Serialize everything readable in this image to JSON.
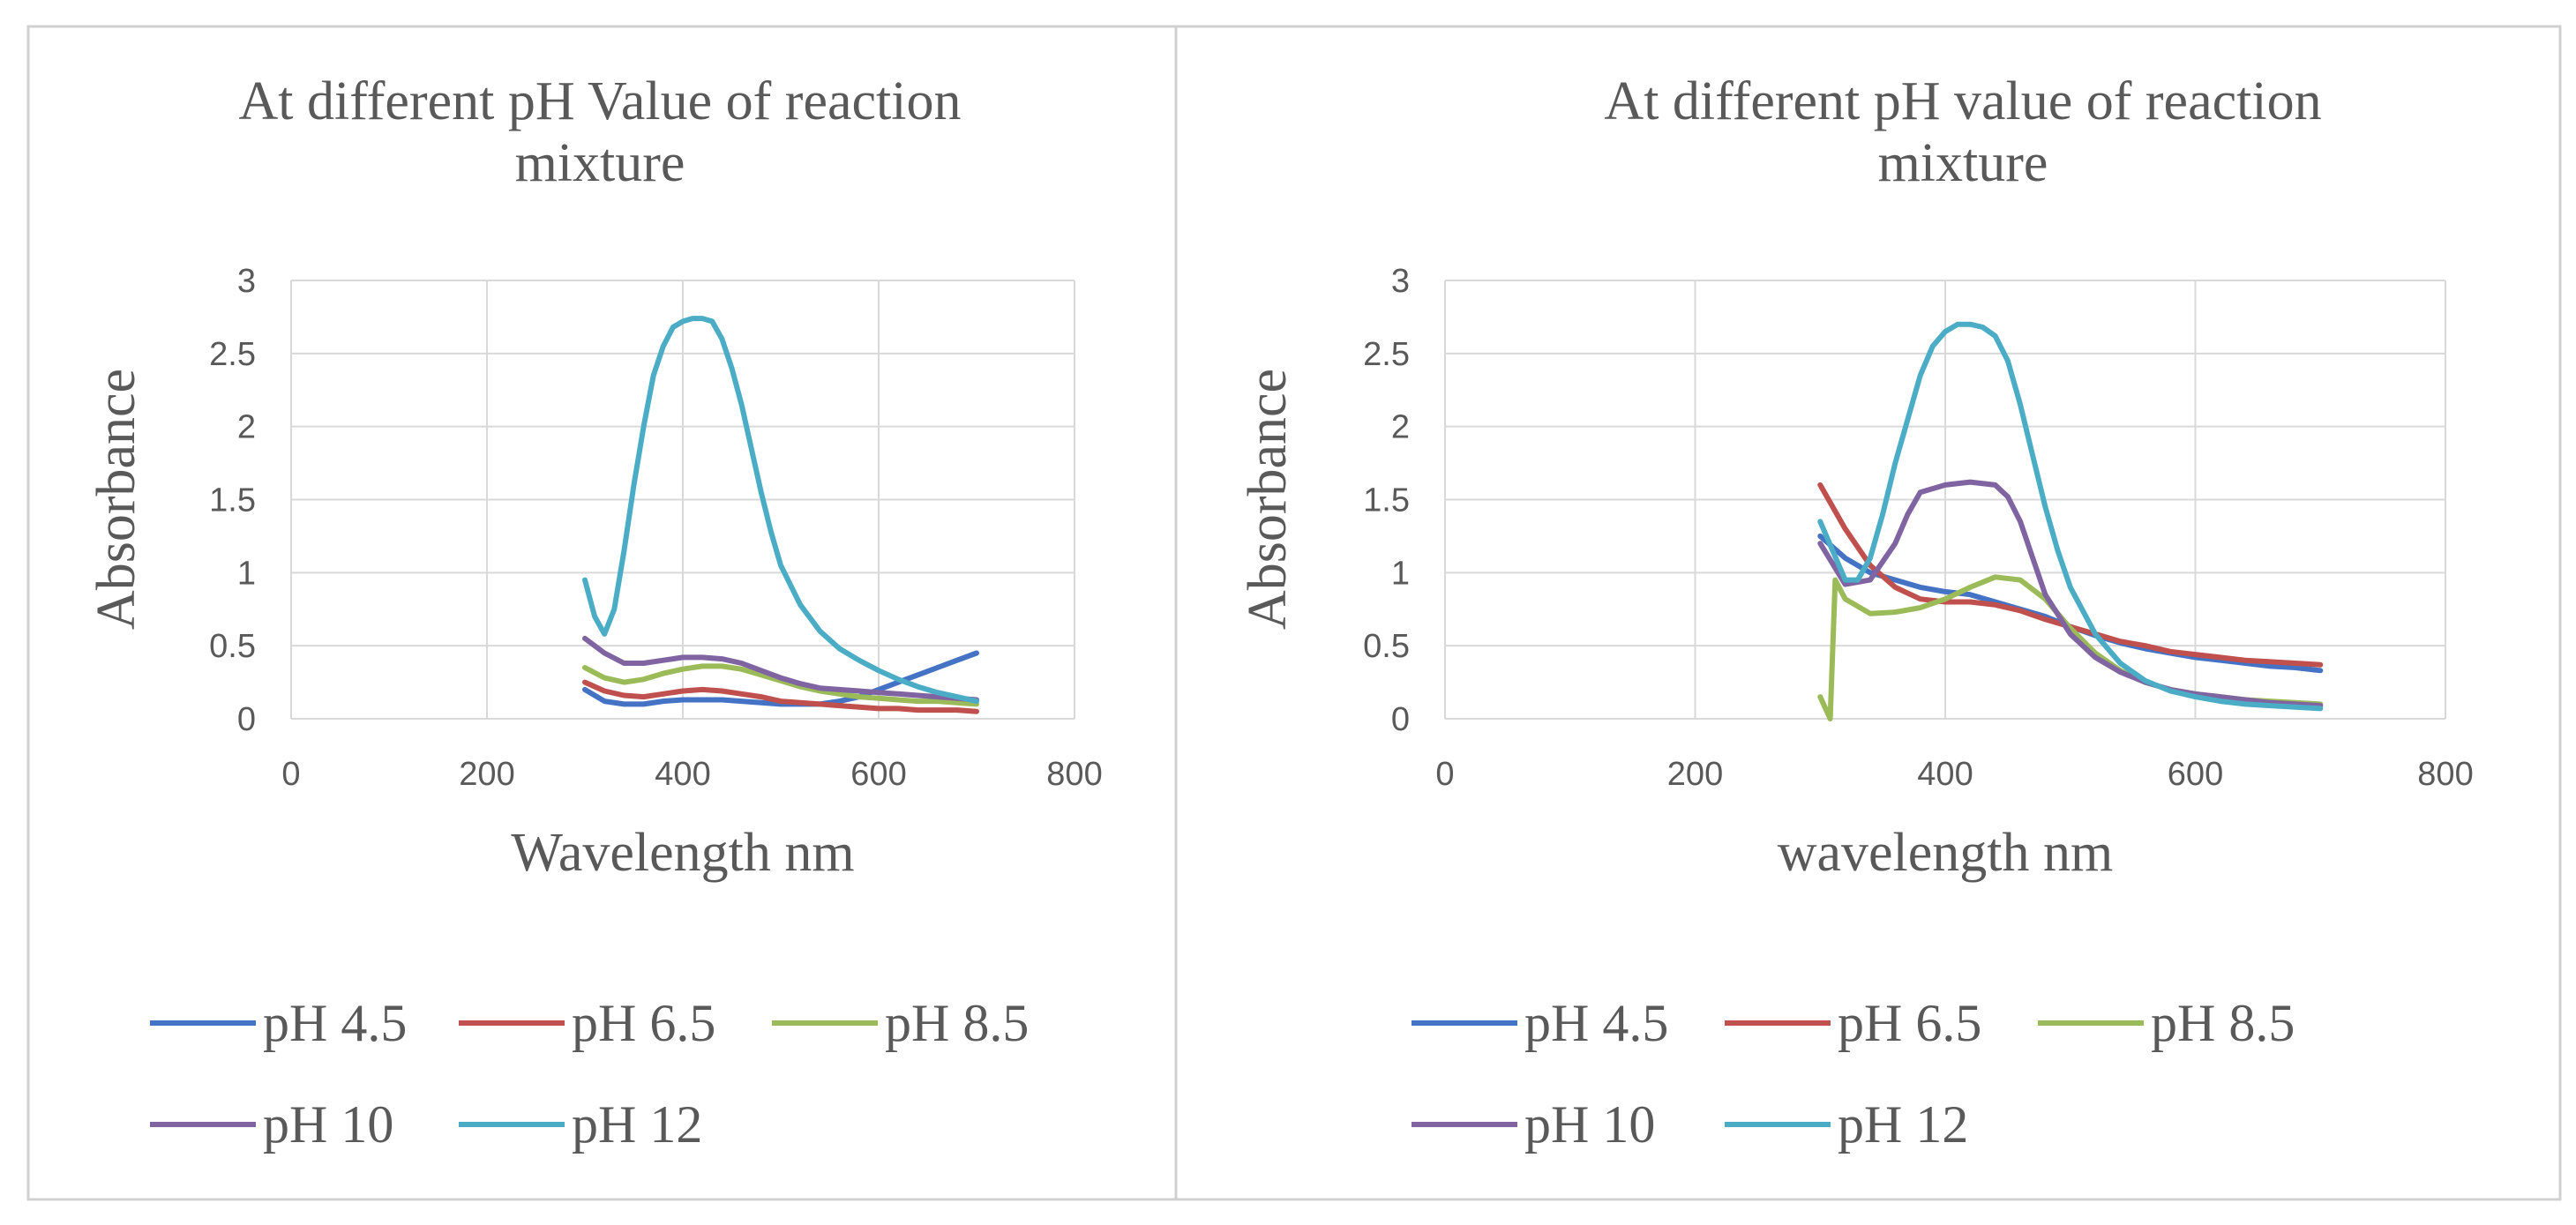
{
  "chart_data": [
    {
      "type": "line",
      "title_lines": [
        "At different pH Value of reaction",
        "mixture"
      ],
      "xlabel": "Wavelength nm",
      "ylabel": "Absorbance",
      "xlim": [
        0,
        800
      ],
      "ylim": [
        0,
        3
      ],
      "xticks": [
        "0",
        "200",
        "400",
        "600",
        "800"
      ],
      "yticks": [
        "0",
        "0.5",
        "1",
        "1.5",
        "2",
        "2.5",
        "3"
      ],
      "grid": true,
      "legend_position": "bottom",
      "series": [
        {
          "name": "pH 4.5",
          "color": "#4472c4",
          "x": [
            300,
            320,
            340,
            360,
            380,
            400,
            420,
            440,
            460,
            480,
            500,
            520,
            540,
            560,
            580,
            600,
            620,
            640,
            660,
            680,
            700
          ],
          "y": [
            0.2,
            0.12,
            0.1,
            0.1,
            0.12,
            0.13,
            0.13,
            0.13,
            0.12,
            0.11,
            0.1,
            0.1,
            0.1,
            0.12,
            0.15,
            0.2,
            0.25,
            0.3,
            0.35,
            0.4,
            0.45
          ]
        },
        {
          "name": "pH 6.5",
          "color": "#c0504d",
          "x": [
            300,
            320,
            340,
            360,
            380,
            400,
            420,
            440,
            460,
            480,
            500,
            520,
            540,
            560,
            580,
            600,
            620,
            640,
            660,
            680,
            700
          ],
          "y": [
            0.25,
            0.19,
            0.16,
            0.15,
            0.17,
            0.19,
            0.2,
            0.19,
            0.17,
            0.15,
            0.12,
            0.11,
            0.1,
            0.09,
            0.08,
            0.07,
            0.07,
            0.06,
            0.06,
            0.06,
            0.05
          ]
        },
        {
          "name": "pH 8.5",
          "color": "#9bbb59",
          "x": [
            300,
            320,
            340,
            360,
            380,
            400,
            420,
            440,
            460,
            480,
            500,
            520,
            540,
            560,
            580,
            600,
            620,
            640,
            660,
            680,
            700
          ],
          "y": [
            0.35,
            0.28,
            0.25,
            0.27,
            0.31,
            0.34,
            0.36,
            0.36,
            0.34,
            0.3,
            0.26,
            0.22,
            0.19,
            0.17,
            0.15,
            0.14,
            0.13,
            0.12,
            0.12,
            0.11,
            0.1
          ]
        },
        {
          "name": "pH 10",
          "color": "#8064a2",
          "x": [
            300,
            320,
            340,
            360,
            380,
            400,
            420,
            440,
            460,
            480,
            500,
            520,
            540,
            560,
            580,
            600,
            620,
            640,
            660,
            680,
            700
          ],
          "y": [
            0.55,
            0.45,
            0.38,
            0.38,
            0.4,
            0.42,
            0.42,
            0.41,
            0.38,
            0.33,
            0.28,
            0.24,
            0.21,
            0.2,
            0.19,
            0.18,
            0.17,
            0.16,
            0.15,
            0.14,
            0.13
          ]
        },
        {
          "name": "pH 12",
          "color": "#4bacc6",
          "x": [
            300,
            310,
            320,
            330,
            340,
            350,
            360,
            370,
            380,
            390,
            400,
            410,
            420,
            430,
            440,
            450,
            460,
            470,
            480,
            490,
            500,
            520,
            540,
            560,
            580,
            600,
            620,
            640,
            660,
            680,
            700
          ],
          "y": [
            0.95,
            0.7,
            0.58,
            0.75,
            1.15,
            1.6,
            2.0,
            2.35,
            2.55,
            2.68,
            2.72,
            2.74,
            2.74,
            2.72,
            2.6,
            2.4,
            2.15,
            1.85,
            1.55,
            1.28,
            1.05,
            0.78,
            0.6,
            0.48,
            0.4,
            0.33,
            0.27,
            0.22,
            0.18,
            0.15,
            0.12
          ]
        }
      ]
    },
    {
      "type": "line",
      "title_lines": [
        "At different pH value of reaction",
        "mixture"
      ],
      "xlabel": "wavelength nm",
      "ylabel": "Absorbance",
      "xlim": [
        0,
        800
      ],
      "ylim": [
        0,
        3
      ],
      "xticks": [
        "0",
        "200",
        "400",
        "600",
        "800"
      ],
      "yticks": [
        "0",
        "0.5",
        "1",
        "1.5",
        "2",
        "2.5",
        "3"
      ],
      "grid": true,
      "legend_position": "bottom",
      "series": [
        {
          "name": "pH 4.5",
          "color": "#4472c4",
          "x": [
            300,
            320,
            340,
            360,
            380,
            400,
            420,
            440,
            460,
            480,
            500,
            520,
            540,
            560,
            580,
            600,
            620,
            640,
            660,
            680,
            700
          ],
          "y": [
            1.25,
            1.1,
            1.0,
            0.95,
            0.9,
            0.87,
            0.85,
            0.8,
            0.75,
            0.7,
            0.63,
            0.57,
            0.52,
            0.48,
            0.45,
            0.42,
            0.4,
            0.38,
            0.36,
            0.35,
            0.33
          ]
        },
        {
          "name": "pH 6.5",
          "color": "#c0504d",
          "x": [
            300,
            320,
            340,
            360,
            380,
            400,
            420,
            440,
            460,
            480,
            500,
            520,
            540,
            560,
            580,
            600,
            620,
            640,
            660,
            680,
            700
          ],
          "y": [
            1.6,
            1.3,
            1.05,
            0.9,
            0.82,
            0.8,
            0.8,
            0.78,
            0.74,
            0.68,
            0.63,
            0.58,
            0.53,
            0.5,
            0.46,
            0.44,
            0.42,
            0.4,
            0.39,
            0.38,
            0.37
          ]
        },
        {
          "name": "pH 8.5",
          "color": "#9bbb59",
          "x": [
            300,
            308,
            312,
            320,
            340,
            360,
            380,
            400,
            420,
            440,
            460,
            480,
            500,
            520,
            540,
            560,
            580,
            600,
            620,
            640,
            660,
            680,
            700
          ],
          "y": [
            0.15,
            0.0,
            0.95,
            0.82,
            0.72,
            0.73,
            0.76,
            0.82,
            0.9,
            0.97,
            0.95,
            0.82,
            0.62,
            0.45,
            0.33,
            0.25,
            0.2,
            0.17,
            0.15,
            0.13,
            0.12,
            0.11,
            0.1
          ]
        },
        {
          "name": "pH 10",
          "color": "#8064a2",
          "x": [
            300,
            320,
            340,
            360,
            370,
            380,
            400,
            420,
            440,
            450,
            460,
            470,
            480,
            500,
            520,
            540,
            560,
            580,
            600,
            620,
            640,
            660,
            680,
            700
          ],
          "y": [
            1.2,
            0.92,
            0.95,
            1.2,
            1.4,
            1.55,
            1.6,
            1.62,
            1.6,
            1.52,
            1.35,
            1.1,
            0.85,
            0.58,
            0.42,
            0.32,
            0.25,
            0.2,
            0.17,
            0.15,
            0.13,
            0.11,
            0.1,
            0.09
          ]
        },
        {
          "name": "pH 12",
          "color": "#4bacc6",
          "x": [
            300,
            320,
            330,
            340,
            350,
            360,
            370,
            380,
            390,
            400,
            410,
            420,
            430,
            440,
            450,
            460,
            470,
            480,
            490,
            500,
            520,
            540,
            560,
            580,
            600,
            620,
            640,
            660,
            680,
            700
          ],
          "y": [
            1.35,
            0.95,
            0.95,
            1.1,
            1.4,
            1.75,
            2.05,
            2.35,
            2.55,
            2.65,
            2.7,
            2.7,
            2.68,
            2.62,
            2.45,
            2.15,
            1.8,
            1.45,
            1.15,
            0.9,
            0.58,
            0.38,
            0.26,
            0.19,
            0.15,
            0.12,
            0.1,
            0.09,
            0.08,
            0.07
          ]
        }
      ]
    }
  ]
}
